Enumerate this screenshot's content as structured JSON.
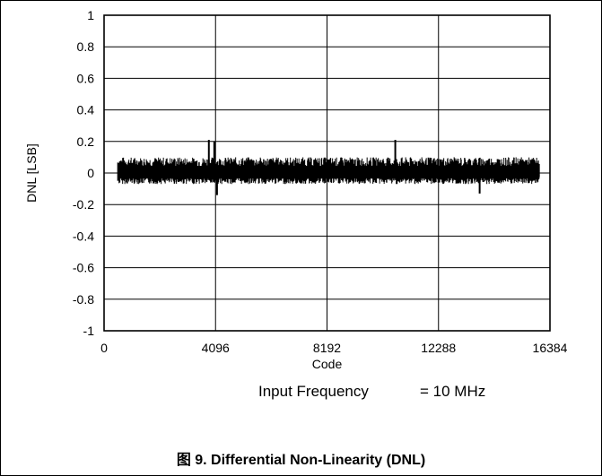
{
  "chart_data": {
    "type": "line",
    "xlabel": "Code",
    "ylabel": "DNL [LSB]",
    "xlim": [
      0,
      16384
    ],
    "ylim": [
      -1,
      1
    ],
    "x_ticks": [
      0,
      4096,
      8192,
      12288,
      16384
    ],
    "x_tick_labels": [
      "0",
      "4096",
      "8192",
      "12288",
      "16384"
    ],
    "y_ticks": [
      1,
      0.8,
      0.6,
      0.4,
      0.2,
      0,
      -0.2,
      -0.4,
      -0.6,
      -0.8,
      -1
    ],
    "y_tick_labels": [
      "1",
      "0.8",
      "0.6",
      "0.4",
      "0.2",
      "0",
      "-0.2",
      "-0.4",
      "-0.6",
      "-0.8",
      "-1"
    ],
    "grid": true,
    "series_color": "#000000",
    "series": [
      {
        "x": [
          500,
          16000
        ],
        "envelope_upper": 0.1,
        "envelope_lower": -0.07,
        "spikes": [
          {
            "x": 3850,
            "y": 0.21
          },
          {
            "x": 4050,
            "y": 0.2
          },
          {
            "x": 4150,
            "y": -0.14
          },
          {
            "x": 10700,
            "y": 0.21
          },
          {
            "x": 13800,
            "y": -0.13
          }
        ]
      }
    ]
  },
  "conditions": {
    "label": "Input Frequency",
    "value": "= 10 MHz"
  },
  "caption": "图 9. Differential Non-Linearity (DNL)"
}
